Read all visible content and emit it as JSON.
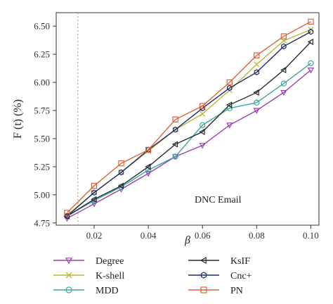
{
  "chart_data": {
    "type": "line",
    "title": "",
    "annotation": "DNC Email",
    "xlabel": "β",
    "ylabel": "F (t) (%)",
    "xlim": [
      0.006,
      0.103
    ],
    "ylim": [
      4.73,
      6.62
    ],
    "xticks": [
      0.02,
      0.04,
      0.06,
      0.08,
      0.1
    ],
    "xtick_labels": [
      "0.02",
      "0.04",
      "0.06",
      "0.08",
      "0.10"
    ],
    "yticks": [
      4.75,
      5.0,
      5.25,
      5.5,
      5.75,
      6.0,
      6.25,
      6.5
    ],
    "ytick_labels": [
      "4.75",
      "5.00",
      "5.25",
      "5.50",
      "5.75",
      "6.00",
      "6.25",
      "6.50"
    ],
    "reference_line_x": 0.014,
    "grid": false,
    "legend_position": "bottom",
    "x": [
      0.01,
      0.02,
      0.03,
      0.04,
      0.05,
      0.06,
      0.07,
      0.08,
      0.09,
      0.1
    ],
    "series": [
      {
        "name": "Degree",
        "color": "#9b3fb0",
        "marker": "triangle-down",
        "values": [
          4.79,
          4.92,
          5.05,
          5.19,
          5.34,
          5.44,
          5.62,
          5.75,
          5.91,
          6.11
        ]
      },
      {
        "name": "K-shell",
        "color": "#b8b83a",
        "marker": "x",
        "values": [
          4.82,
          5.02,
          5.2,
          5.39,
          5.58,
          5.72,
          5.93,
          6.16,
          6.37,
          6.47
        ]
      },
      {
        "name": "MDD",
        "color": "#3aa6a6",
        "marker": "circle",
        "values": [
          4.81,
          4.95,
          5.07,
          5.22,
          5.34,
          5.62,
          5.77,
          5.82,
          5.99,
          6.17
        ]
      },
      {
        "name": "KsIF",
        "color": "#2b2b2b",
        "marker": "triangle-left",
        "values": [
          4.81,
          4.96,
          5.08,
          5.25,
          5.45,
          5.56,
          5.8,
          5.91,
          6.11,
          6.36
        ]
      },
      {
        "name": "Cnc+",
        "color": "#1f2a6b",
        "marker": "hexagon",
        "values": [
          4.81,
          5.02,
          5.2,
          5.4,
          5.58,
          5.77,
          5.95,
          6.09,
          6.32,
          6.45
        ]
      },
      {
        "name": "PN",
        "color": "#e0623a",
        "marker": "square",
        "values": [
          4.84,
          5.08,
          5.28,
          5.4,
          5.67,
          5.79,
          6.0,
          6.24,
          6.41,
          6.54
        ]
      }
    ]
  }
}
